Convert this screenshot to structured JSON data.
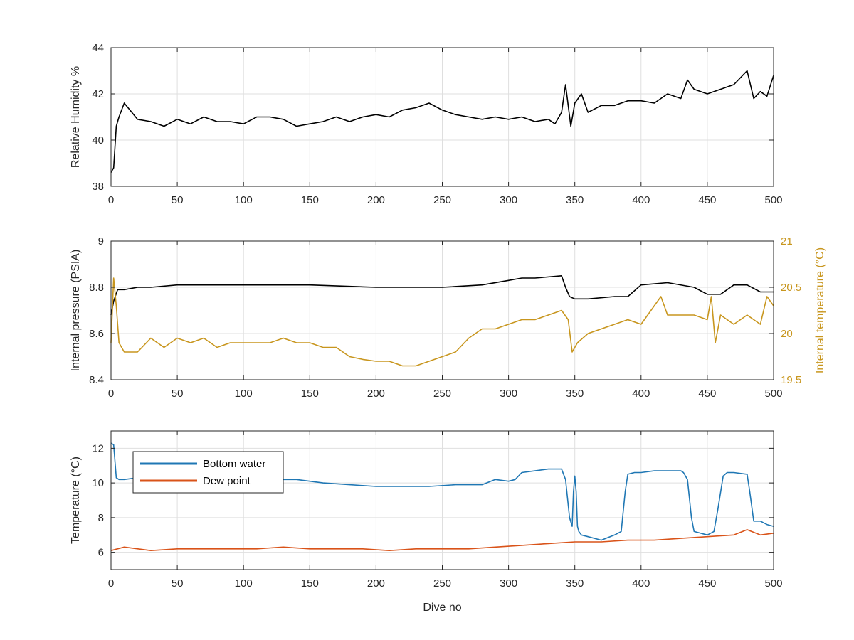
{
  "chart_data": [
    {
      "type": "line",
      "title": "",
      "xlabel": "",
      "ylabel": "Relative Humidity %",
      "xlim": [
        0,
        500
      ],
      "ylim": [
        38,
        44
      ],
      "xticks": [
        0,
        50,
        100,
        150,
        200,
        250,
        300,
        350,
        400,
        450,
        500
      ],
      "yticks": [
        38,
        40,
        42,
        44
      ],
      "grid": true,
      "series": [
        {
          "color": "#000000",
          "x": [
            0,
            2,
            4,
            6,
            10,
            20,
            30,
            40,
            50,
            60,
            70,
            80,
            90,
            100,
            110,
            120,
            130,
            140,
            150,
            160,
            170,
            180,
            190,
            200,
            210,
            220,
            230,
            240,
            250,
            260,
            270,
            280,
            290,
            300,
            310,
            320,
            330,
            335,
            340,
            343,
            347,
            350,
            355,
            360,
            370,
            380,
            390,
            400,
            410,
            420,
            430,
            435,
            440,
            450,
            460,
            470,
            480,
            485,
            490,
            495,
            500
          ],
          "y": [
            38.6,
            38.8,
            40.6,
            41.0,
            41.6,
            40.9,
            40.8,
            40.6,
            40.9,
            40.7,
            41.0,
            40.8,
            40.8,
            40.7,
            41.0,
            41.0,
            40.9,
            40.6,
            40.7,
            40.8,
            41.0,
            40.8,
            41.0,
            41.1,
            41.0,
            41.3,
            41.4,
            41.6,
            41.3,
            41.1,
            41.0,
            40.9,
            41.0,
            40.9,
            41.0,
            40.8,
            40.9,
            40.7,
            41.2,
            42.4,
            40.6,
            41.6,
            42.0,
            41.2,
            41.5,
            41.5,
            41.7,
            41.7,
            41.6,
            42.0,
            41.8,
            42.6,
            42.2,
            42.0,
            42.2,
            42.4,
            43.0,
            41.8,
            42.1,
            41.9,
            42.8
          ]
        }
      ]
    },
    {
      "type": "line",
      "title": "",
      "xlabel": "",
      "ylabel": "Internal pressure (PSIA)",
      "ylabel_right": "Internal temperature (°C)",
      "xlim": [
        0,
        500
      ],
      "ylim": [
        8.4,
        9
      ],
      "ylim_right": [
        19.5,
        21
      ],
      "xticks": [
        0,
        50,
        100,
        150,
        200,
        250,
        300,
        350,
        400,
        450,
        500
      ],
      "yticks": [
        8.4,
        8.6,
        8.8,
        9
      ],
      "yticks_right": [
        19.5,
        20,
        20.5,
        21
      ],
      "grid": true,
      "series": [
        {
          "axis": "left",
          "color": "#000000",
          "x": [
            0,
            2,
            5,
            10,
            20,
            30,
            50,
            70,
            100,
            150,
            200,
            250,
            280,
            300,
            310,
            320,
            340,
            343,
            346,
            350,
            360,
            380,
            390,
            400,
            420,
            440,
            450,
            460,
            470,
            480,
            490,
            500
          ],
          "y": [
            8.68,
            8.74,
            8.79,
            8.79,
            8.8,
            8.8,
            8.81,
            8.81,
            8.81,
            8.81,
            8.8,
            8.8,
            8.81,
            8.83,
            8.84,
            8.84,
            8.85,
            8.8,
            8.76,
            8.75,
            8.75,
            8.76,
            8.76,
            8.81,
            8.82,
            8.8,
            8.77,
            8.77,
            8.81,
            8.81,
            8.78,
            8.78
          ]
        },
        {
          "axis": "right",
          "color": "#c8961e",
          "x": [
            0,
            2,
            4,
            6,
            10,
            20,
            30,
            40,
            50,
            60,
            70,
            80,
            90,
            100,
            110,
            120,
            130,
            140,
            150,
            160,
            170,
            180,
            190,
            200,
            210,
            220,
            230,
            240,
            250,
            260,
            270,
            280,
            290,
            300,
            310,
            320,
            330,
            340,
            345,
            348,
            352,
            360,
            370,
            380,
            390,
            400,
            410,
            415,
            420,
            430,
            440,
            450,
            453,
            456,
            460,
            470,
            480,
            490,
            495,
            500
          ],
          "y": [
            19.9,
            20.6,
            20.3,
            19.9,
            19.8,
            19.8,
            19.95,
            19.85,
            19.95,
            19.9,
            19.95,
            19.85,
            19.9,
            19.9,
            19.9,
            19.9,
            19.95,
            19.9,
            19.9,
            19.85,
            19.85,
            19.75,
            19.72,
            19.7,
            19.7,
            19.65,
            19.65,
            19.7,
            19.75,
            19.8,
            19.95,
            20.05,
            20.05,
            20.1,
            20.15,
            20.15,
            20.2,
            20.25,
            20.15,
            19.8,
            19.9,
            20.0,
            20.05,
            20.1,
            20.15,
            20.1,
            20.3,
            20.4,
            20.2,
            20.2,
            20.2,
            20.15,
            20.4,
            19.9,
            20.2,
            20.1,
            20.2,
            20.1,
            20.4,
            20.3
          ]
        }
      ]
    },
    {
      "type": "line",
      "title": "",
      "xlabel": "Dive no",
      "ylabel": "Temperature (°C)",
      "xlim": [
        0,
        500
      ],
      "ylim": [
        5,
        13
      ],
      "xticks": [
        0,
        50,
        100,
        150,
        200,
        250,
        300,
        350,
        400,
        450,
        500
      ],
      "yticks": [
        6,
        8,
        10,
        12
      ],
      "grid": true,
      "legend": "top-left",
      "series": [
        {
          "name": "Bottom water",
          "color": "#1f77b4",
          "x": [
            0,
            2,
            4,
            6,
            10,
            20,
            40,
            60,
            80,
            100,
            120,
            140,
            160,
            180,
            200,
            220,
            240,
            260,
            270,
            280,
            290,
            300,
            305,
            310,
            320,
            330,
            340,
            343,
            346,
            348,
            349,
            350,
            351,
            352,
            353,
            355,
            360,
            370,
            380,
            385,
            388,
            390,
            395,
            400,
            410,
            420,
            430,
            432,
            435,
            438,
            440,
            450,
            455,
            458,
            462,
            465,
            470,
            480,
            482,
            485,
            490,
            495,
            500
          ],
          "y": [
            12.3,
            12.2,
            10.3,
            10.2,
            10.2,
            10.3,
            10.3,
            10.3,
            10.3,
            10.4,
            10.2,
            10.2,
            10.0,
            9.9,
            9.8,
            9.8,
            9.8,
            9.9,
            9.9,
            9.9,
            10.2,
            10.1,
            10.2,
            10.6,
            10.7,
            10.8,
            10.8,
            10.2,
            8.0,
            7.5,
            9.5,
            10.4,
            9.5,
            7.5,
            7.2,
            7.0,
            6.9,
            6.7,
            7.0,
            7.2,
            9.5,
            10.5,
            10.6,
            10.6,
            10.7,
            10.7,
            10.7,
            10.6,
            10.2,
            8.0,
            7.2,
            7.0,
            7.2,
            8.5,
            10.4,
            10.6,
            10.6,
            10.5,
            9.5,
            7.8,
            7.8,
            7.6,
            7.5
          ]
        },
        {
          "name": "Dew point",
          "color": "#d95319",
          "x": [
            0,
            10,
            30,
            50,
            70,
            90,
            110,
            130,
            150,
            170,
            190,
            210,
            230,
            250,
            270,
            290,
            310,
            330,
            350,
            370,
            390,
            410,
            430,
            450,
            470,
            480,
            490,
            500
          ],
          "y": [
            6.1,
            6.3,
            6.1,
            6.2,
            6.2,
            6.2,
            6.2,
            6.3,
            6.2,
            6.2,
            6.2,
            6.1,
            6.2,
            6.2,
            6.2,
            6.3,
            6.4,
            6.5,
            6.6,
            6.6,
            6.7,
            6.7,
            6.8,
            6.9,
            7.0,
            7.3,
            7.0,
            7.1
          ]
        }
      ]
    }
  ]
}
